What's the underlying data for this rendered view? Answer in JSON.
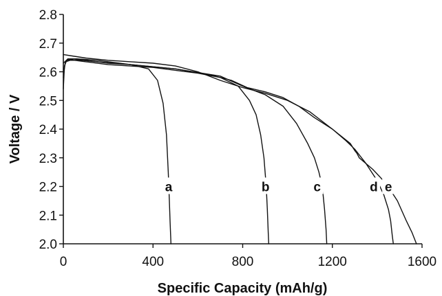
{
  "chart_data": {
    "type": "line",
    "title": "",
    "xlabel": "Specific Capacity (mAh/g)",
    "ylabel": "Voltage / V",
    "xlim": [
      0,
      1600
    ],
    "ylim": [
      2.0,
      2.8
    ],
    "xticks": [
      "0",
      "400",
      "800",
      "1200",
      "1600"
    ],
    "yticks": [
      "2.0",
      "2.1",
      "2.2",
      "2.3",
      "2.4",
      "2.5",
      "2.6",
      "2.7",
      "2.8"
    ],
    "grid": false,
    "legend": "none",
    "line_color": "#111111",
    "series": [
      {
        "label": "a",
        "label_at": [
          470,
          2.2
        ],
        "x": [
          0,
          5,
          15,
          40,
          100,
          200,
          300,
          380,
          420,
          445,
          460,
          468,
          473,
          476,
          479,
          480
        ],
        "y": [
          2.54,
          2.62,
          2.64,
          2.645,
          2.64,
          2.63,
          2.625,
          2.61,
          2.57,
          2.49,
          2.38,
          2.25,
          2.15,
          2.08,
          2.02,
          2.0
        ]
      },
      {
        "label": "b",
        "label_at": [
          902,
          2.2
        ],
        "x": [
          0,
          8,
          20,
          50,
          100,
          200,
          400,
          600,
          700,
          780,
          830,
          860,
          880,
          895,
          905,
          910,
          914,
          916
        ],
        "y": [
          2.58,
          2.63,
          2.645,
          2.64,
          2.635,
          2.625,
          2.615,
          2.595,
          2.58,
          2.55,
          2.5,
          2.45,
          2.38,
          2.3,
          2.2,
          2.12,
          2.04,
          2.0
        ]
      },
      {
        "label": "c",
        "label_at": [
          1132,
          2.2
        ],
        "x": [
          0,
          10,
          30,
          80,
          150,
          300,
          500,
          700,
          800,
          900,
          980,
          1040,
          1090,
          1120,
          1140,
          1155,
          1165,
          1172,
          1175
        ],
        "y": [
          2.6,
          2.635,
          2.64,
          2.64,
          2.635,
          2.625,
          2.61,
          2.585,
          2.55,
          2.52,
          2.48,
          2.42,
          2.35,
          2.3,
          2.25,
          2.2,
          2.12,
          2.05,
          2.0
        ]
      },
      {
        "label": "d",
        "label_at": [
          1385,
          2.2
        ],
        "x": [
          0,
          20,
          60,
          150,
          300,
          500,
          650,
          750,
          820,
          900,
          980,
          1050,
          1120,
          1200,
          1260,
          1300,
          1350,
          1400,
          1430,
          1450,
          1460,
          1467,
          1472
        ],
        "y": [
          2.63,
          2.645,
          2.645,
          2.64,
          2.625,
          2.61,
          2.59,
          2.57,
          2.545,
          2.53,
          2.51,
          2.48,
          2.44,
          2.4,
          2.36,
          2.33,
          2.28,
          2.22,
          2.17,
          2.12,
          2.08,
          2.03,
          2.0
        ]
      },
      {
        "label": "e",
        "label_at": [
          1450,
          2.2
        ],
        "x": [
          0,
          40,
          100,
          200,
          300,
          400,
          500,
          600,
          700,
          800,
          900,
          1000,
          1100,
          1200,
          1280,
          1300,
          1310,
          1320,
          1380,
          1440,
          1490,
          1530,
          1555,
          1575
        ],
        "y": [
          2.66,
          2.655,
          2.648,
          2.64,
          2.635,
          2.63,
          2.62,
          2.6,
          2.57,
          2.545,
          2.525,
          2.5,
          2.46,
          2.4,
          2.35,
          2.325,
          2.315,
          2.3,
          2.26,
          2.21,
          2.15,
          2.08,
          2.04,
          2.0
        ]
      }
    ]
  }
}
